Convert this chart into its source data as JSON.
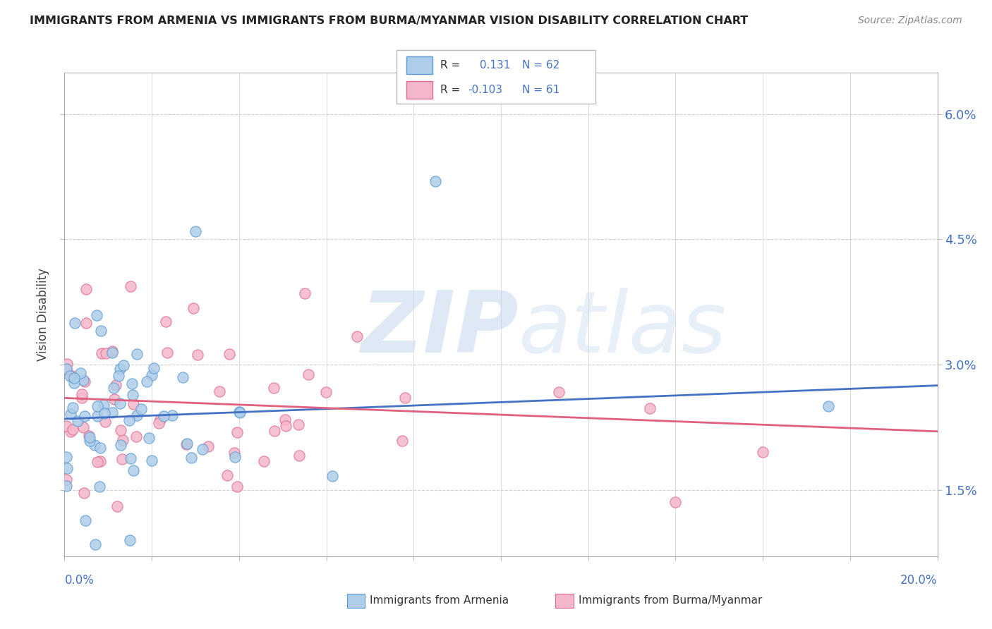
{
  "title": "IMMIGRANTS FROM ARMENIA VS IMMIGRANTS FROM BURMA/MYANMAR VISION DISABILITY CORRELATION CHART",
  "source": "Source: ZipAtlas.com",
  "ylabel": "Vision Disability",
  "ytick_vals": [
    1.5,
    3.0,
    4.5,
    6.0
  ],
  "ytick_labels": [
    "1.5%",
    "3.0%",
    "4.5%",
    "6.0%"
  ],
  "xlim": [
    0.0,
    20.0
  ],
  "ylim": [
    0.7,
    6.5
  ],
  "armenia_fill": "#aecde8",
  "armenia_edge": "#5b9bd5",
  "burma_fill": "#f5b8cb",
  "burma_edge": "#e06b8b",
  "line_armenia": "#4472c4",
  "line_burma": "#e06080",
  "R_armenia": 0.131,
  "N_armenia": 62,
  "R_burma": -0.103,
  "N_burma": 61,
  "label_armenia": "Immigrants from Armenia",
  "label_burma": "Immigrants from Burma/Myanmar",
  "watermark_zip": "ZIP",
  "watermark_atlas": "atlas",
  "watermark_color": "#c8d8ec",
  "background_color": "#ffffff",
  "tick_label_color": "#4472c4",
  "grid_color": "#d0d0d0",
  "title_color": "#222222",
  "source_color": "#888888"
}
